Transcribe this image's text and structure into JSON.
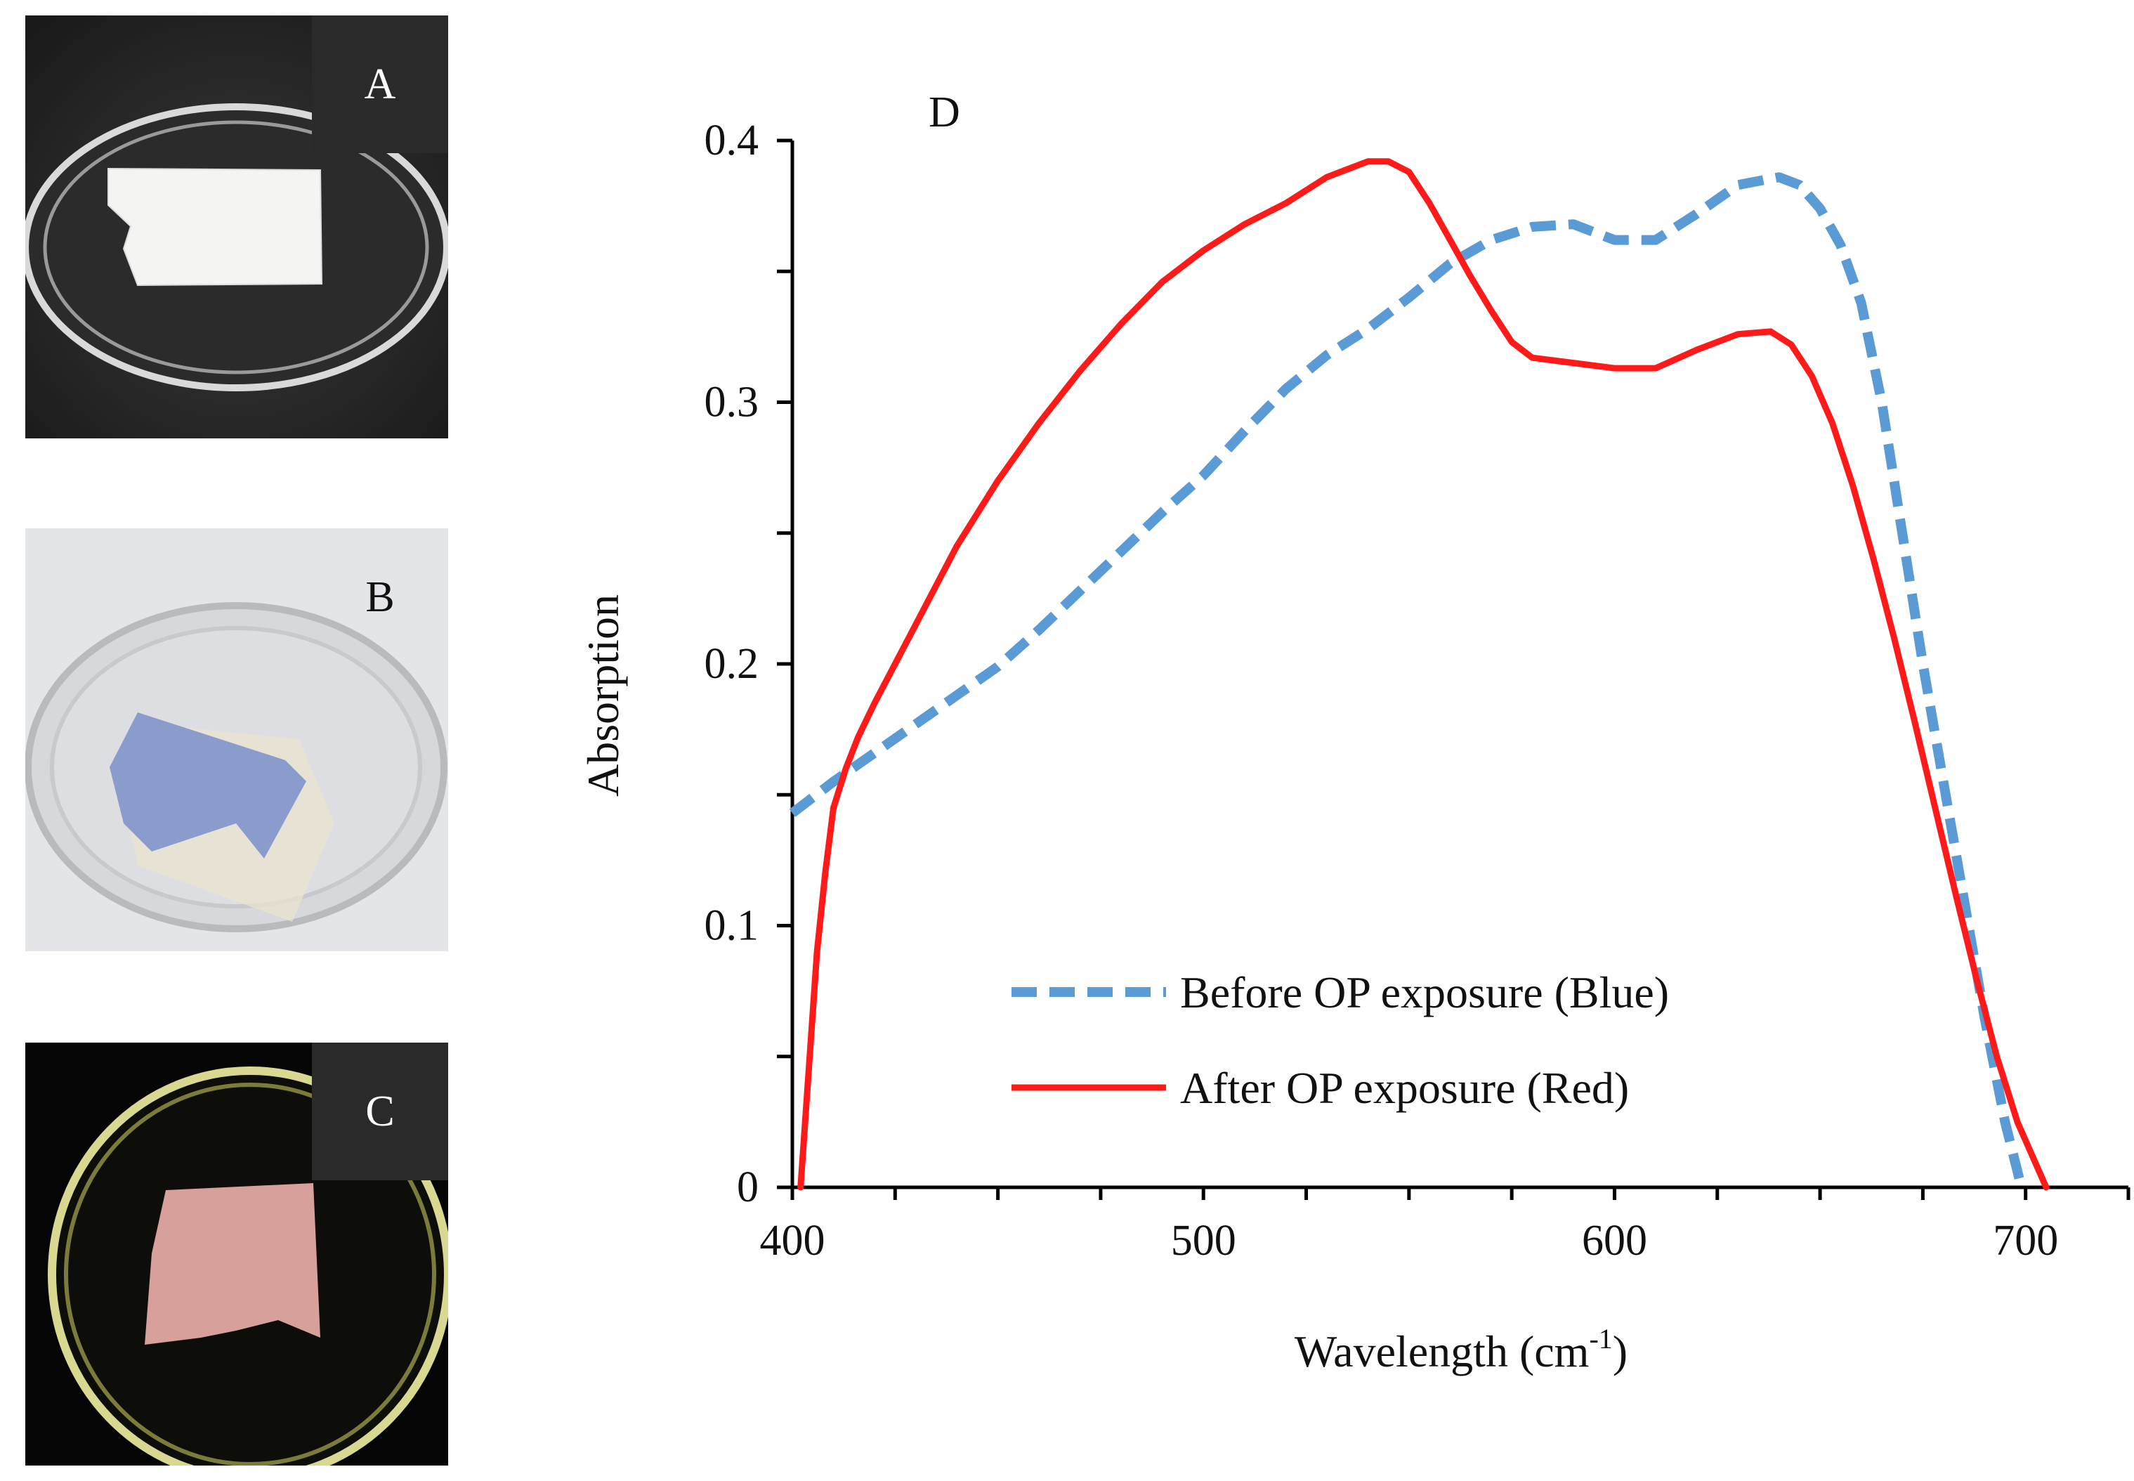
{
  "photos": [
    {
      "label": "A",
      "description_icon": "petri-dish-white-paper-photo"
    },
    {
      "label": "B",
      "description_icon": "petri-dish-blue-paper-photo"
    },
    {
      "label": "C",
      "description_icon": "petri-dish-pink-paper-photo"
    }
  ],
  "chart_data": {
    "type": "line",
    "panel_label": "D",
    "title": "",
    "xlabel": "Wavelength (cm",
    "xlabel_sup": "-1",
    "xlabel_end": ")",
    "ylabel": "Absorption",
    "xlim": [
      400,
      725
    ],
    "ylim": [
      0,
      0.4
    ],
    "xticks": [
      400,
      500,
      600,
      700
    ],
    "xtick_labels": [
      "400",
      "500",
      "600",
      "700"
    ],
    "yticks": [
      0,
      0.1,
      0.2,
      0.3,
      0.4
    ],
    "ytick_labels": [
      "0",
      "0.1",
      "0.2",
      "0.3",
      "0.4"
    ],
    "grid": false,
    "legend_position": "bottom-left-inside",
    "series": [
      {
        "name": "Before OP exposure (Blue)",
        "color": "#5b9bd5",
        "style": "dashed",
        "x": [
          400,
          410,
          420,
          430,
          440,
          450,
          460,
          470,
          480,
          490,
          500,
          510,
          520,
          530,
          540,
          550,
          560,
          570,
          580,
          590,
          600,
          610,
          620,
          630,
          640,
          645,
          650,
          655,
          660,
          665,
          670,
          675,
          680,
          685,
          690,
          695,
          699
        ],
        "y": [
          0.143,
          0.155,
          0.166,
          0.177,
          0.188,
          0.199,
          0.213,
          0.228,
          0.243,
          0.258,
          0.272,
          0.289,
          0.305,
          0.318,
          0.328,
          0.34,
          0.353,
          0.362,
          0.367,
          0.368,
          0.362,
          0.362,
          0.372,
          0.383,
          0.386,
          0.383,
          0.374,
          0.36,
          0.338,
          0.3,
          0.25,
          0.2,
          0.155,
          0.11,
          0.065,
          0.025,
          0.0
        ]
      },
      {
        "name": "After OP exposure (Red)",
        "color": "#ff1a1a",
        "style": "solid",
        "x": [
          402,
          404,
          406,
          408,
          410,
          413,
          416,
          420,
          425,
          430,
          435,
          440,
          450,
          460,
          470,
          480,
          490,
          500,
          510,
          520,
          530,
          540,
          545,
          550,
          555,
          560,
          565,
          570,
          575,
          580,
          590,
          600,
          610,
          620,
          630,
          638,
          643,
          648,
          653,
          658,
          663,
          668,
          673,
          678,
          683,
          688,
          693,
          698,
          705
        ],
        "y": [
          0.0,
          0.045,
          0.09,
          0.12,
          0.145,
          0.16,
          0.172,
          0.185,
          0.2,
          0.215,
          0.23,
          0.245,
          0.27,
          0.292,
          0.312,
          0.33,
          0.346,
          0.358,
          0.368,
          0.376,
          0.386,
          0.392,
          0.392,
          0.388,
          0.376,
          0.362,
          0.348,
          0.335,
          0.323,
          0.317,
          0.315,
          0.313,
          0.313,
          0.32,
          0.326,
          0.327,
          0.322,
          0.31,
          0.292,
          0.268,
          0.24,
          0.21,
          0.178,
          0.145,
          0.112,
          0.08,
          0.05,
          0.025,
          0.0
        ]
      }
    ]
  }
}
